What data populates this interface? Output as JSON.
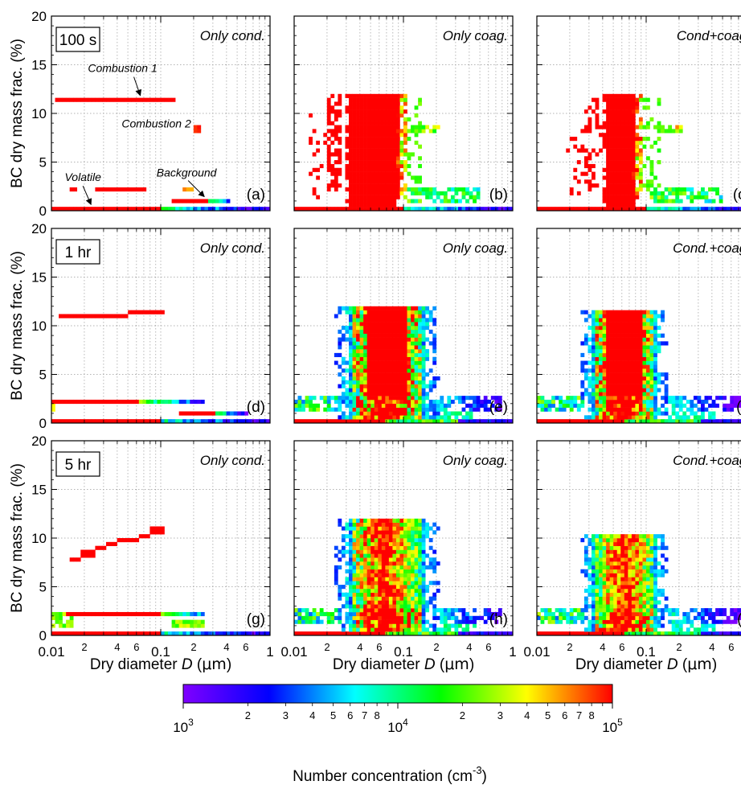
{
  "chart_data": {
    "type": "heatmap",
    "x_scale": "log",
    "xlim": [
      0.01,
      1
    ],
    "ylim": [
      0,
      20
    ],
    "x_major_tick_labels": [
      "0.01",
      "0.1",
      "1"
    ],
    "x_minor_tick_labels": [
      "2",
      "4",
      "6",
      "2",
      "4",
      "6"
    ],
    "y_tick_labels": [
      "0",
      "5",
      "10",
      "15",
      "20"
    ],
    "xlabel": "Dry diameter D (μm)",
    "xlabel_parts": {
      "pre": "Dry diameter ",
      "var": "D",
      "post": " (",
      "unit": "μm",
      "close": ")"
    },
    "ylabel": "BC dry mass frac. (%)",
    "grid": true,
    "colorbar": {
      "label": "Number concentration (cm-3)",
      "label_parts": {
        "pre": "Number concentration (cm",
        "sup": "-3",
        "post": ")"
      },
      "scale": "log",
      "range": [
        1000,
        100000
      ],
      "major_labels": [
        {
          "base": "10",
          "exp": "3"
        },
        {
          "base": "10",
          "exp": "4"
        },
        {
          "base": "10",
          "exp": "5"
        }
      ],
      "minor_labels": [
        "2",
        "3",
        "4",
        "5",
        "6",
        "7",
        "8",
        "2",
        "3",
        "4",
        "5",
        "6",
        "7",
        "8"
      ],
      "colors": [
        "#8000ff",
        "#0000ff",
        "#00ffff",
        "#00ff00",
        "#ffff00",
        "#ff0000"
      ]
    },
    "rows": [
      {
        "time": "100 s"
      },
      {
        "time": "1 hr"
      },
      {
        "time": "5 hr"
      }
    ],
    "panels": [
      {
        "letter": "(a)",
        "mode": "Only cond.",
        "row": 0,
        "col": 0,
        "process": "cond",
        "annotations": [
          {
            "text": "Combustion 1",
            "target": [
              0.065,
              11.6
            ]
          },
          {
            "text": "Combustion 2",
            "target": [
              0.22,
              8.4
            ]
          },
          {
            "text": "Background",
            "target": [
              0.25,
              1.2
            ]
          },
          {
            "text": "Volatile",
            "target": [
              0.023,
              0.4
            ]
          }
        ]
      },
      {
        "letter": "(b)",
        "mode": "Only coag.",
        "row": 0,
        "col": 1,
        "process": "coag"
      },
      {
        "letter": "(c)",
        "mode": "Cond+coag.",
        "row": 0,
        "col": 2,
        "process": "both"
      },
      {
        "letter": "(d)",
        "mode": "Only cond.",
        "row": 1,
        "col": 0,
        "process": "cond"
      },
      {
        "letter": "(e)",
        "mode": "Only coag.",
        "row": 1,
        "col": 1,
        "process": "coag"
      },
      {
        "letter": "(f)",
        "mode": "Cond.+coag.",
        "row": 1,
        "col": 2,
        "process": "both"
      },
      {
        "letter": "(g)",
        "mode": "Only cond.",
        "row": 2,
        "col": 0,
        "process": "cond"
      },
      {
        "letter": "(h)",
        "mode": "Only coag.",
        "row": 2,
        "col": 1,
        "process": "coag"
      },
      {
        "letter": "(i)",
        "mode": "Cond.+coag.",
        "row": 2,
        "col": 2,
        "process": "both"
      }
    ]
  }
}
